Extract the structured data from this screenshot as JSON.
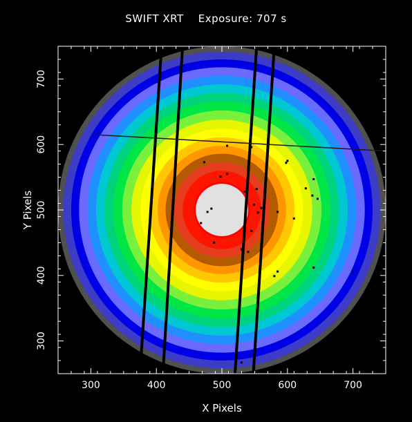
{
  "header": {
    "instrument": "SWIFT XRT",
    "exposure": "Exposure: 707 s"
  },
  "chart_data": {
    "type": "heatmap",
    "title": "SWIFT XRT    Exposure: 707 s",
    "xlabel": "X Pixels",
    "ylabel": "Y Pixels",
    "xlim": [
      250,
      750
    ],
    "ylim": [
      250,
      750
    ],
    "xticks": [
      300,
      400,
      500,
      600,
      700
    ],
    "yticks": [
      300,
      400,
      500,
      600,
      700
    ],
    "grid": false,
    "center": [
      500,
      500
    ],
    "rings": [
      {
        "r": 250,
        "color": "#505050"
      },
      {
        "r": 242,
        "color": "#3c3cc8"
      },
      {
        "r": 230,
        "color": "#0000e6"
      },
      {
        "r": 218,
        "color": "#6a6aff"
      },
      {
        "r": 205,
        "color": "#1e90ff"
      },
      {
        "r": 192,
        "color": "#00c8d2"
      },
      {
        "r": 179,
        "color": "#00d27d"
      },
      {
        "r": 166,
        "color": "#00e646"
      },
      {
        "r": 152,
        "color": "#78f03c"
      },
      {
        "r": 138,
        "color": "#e6f500"
      },
      {
        "r": 124,
        "color": "#ffff00"
      },
      {
        "r": 111,
        "color": "#ffc800"
      },
      {
        "r": 98,
        "color": "#ff9600"
      },
      {
        "r": 86,
        "color": "#b45a00"
      },
      {
        "r": 73,
        "color": "#e63c1e"
      },
      {
        "r": 60,
        "color": "#ff1400"
      },
      {
        "r": 43,
        "color": "#ff0000"
      },
      {
        "r": 40,
        "color": "#e1e1e1"
      }
    ],
    "columns": [
      [
        [
          375,
          250
        ],
        [
          408,
          750
        ]
      ],
      [
        [
          410,
          250
        ],
        [
          440,
          750
        ]
      ],
      [
        [
          520,
          250
        ],
        [
          553,
          750
        ]
      ],
      [
        [
          548,
          250
        ],
        [
          580,
          750
        ]
      ]
    ],
    "row_line": [
      [
        305,
        615
      ],
      [
        750,
        590
      ]
    ],
    "points": [
      [
        473,
        573
      ],
      [
        508,
        598
      ],
      [
        545,
        596
      ],
      [
        508,
        555
      ],
      [
        498,
        551
      ],
      [
        535,
        528
      ],
      [
        553,
        532
      ],
      [
        484,
        502
      ],
      [
        478,
        497
      ],
      [
        560,
        503
      ],
      [
        555,
        496
      ],
      [
        549,
        508
      ],
      [
        545,
        468
      ],
      [
        540,
        436
      ],
      [
        468,
        480
      ],
      [
        488,
        450
      ],
      [
        598,
        572
      ],
      [
        628,
        533
      ],
      [
        640,
        547
      ],
      [
        638,
        522
      ],
      [
        646,
        517
      ],
      [
        585,
        497
      ],
      [
        610,
        487
      ],
      [
        585,
        406
      ],
      [
        580,
        399
      ],
      [
        640,
        412
      ],
      [
        530,
        440
      ],
      [
        530,
        267
      ],
      [
        600,
        575
      ],
      [
        700,
        405
      ]
    ]
  }
}
